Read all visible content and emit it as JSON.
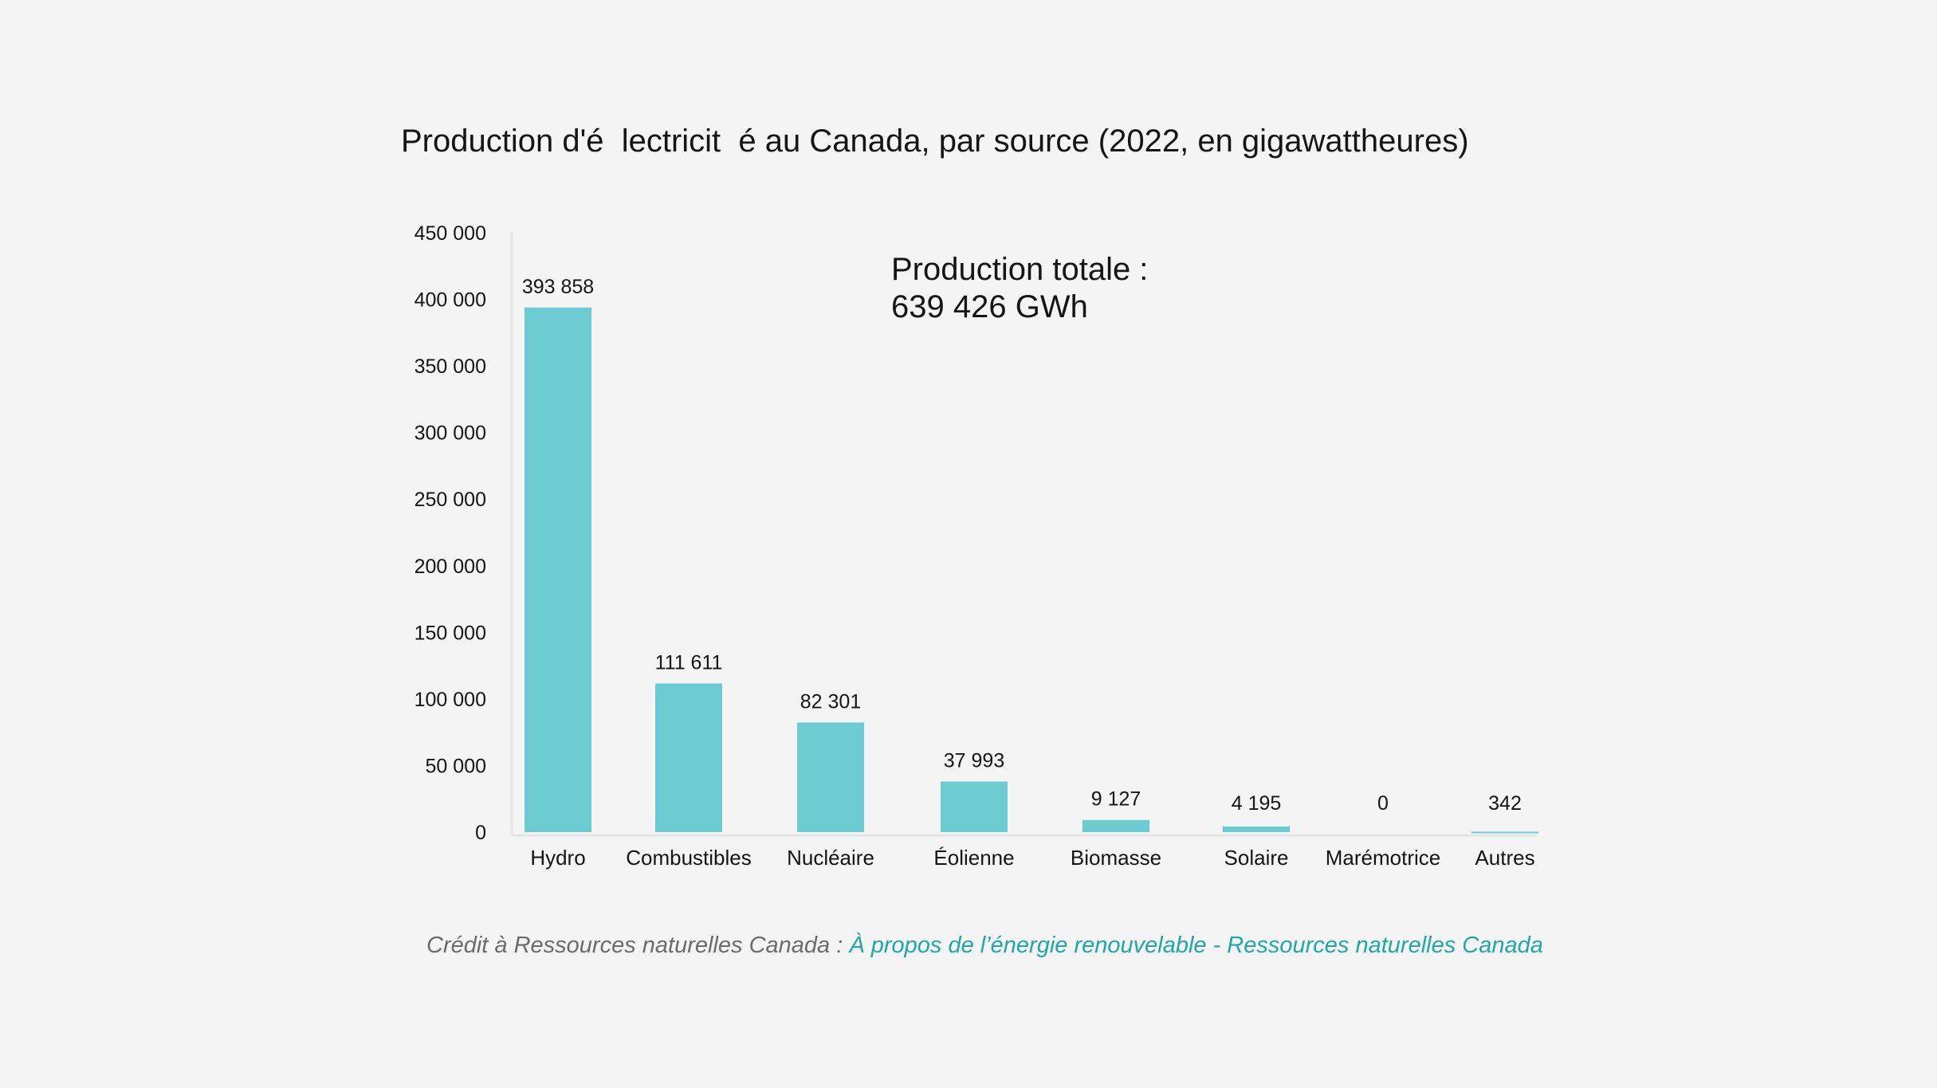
{
  "chart_data": {
    "type": "bar",
    "title": "Production d'é  lectricit  é au Canada, par source (2022, en gigawattheures)",
    "xlabel": "",
    "ylabel": "",
    "ylim": [
      0,
      450000
    ],
    "yticks": [
      "0",
      "50 000",
      "100 000",
      "150 000",
      "200 000",
      "250 000",
      "300 000",
      "350 000",
      "400 000",
      "450 000"
    ],
    "ytick_values": [
      0,
      50000,
      100000,
      150000,
      200000,
      250000,
      300000,
      350000,
      400000,
      450000
    ],
    "categories": [
      "Hydro",
      "Combustibles",
      "Nucléaire",
      "Éolienne",
      "Biomasse",
      "Solaire",
      "Marémotrice",
      "Autres"
    ],
    "values": [
      393858,
      111611,
      82301,
      37993,
      9127,
      4195,
      0,
      342
    ],
    "value_labels": [
      "393 858",
      "111 611",
      "82 301",
      "37 993",
      "9 127",
      "4 195",
      "0",
      "342"
    ],
    "bar_color": "#6ccbd0",
    "grid": false,
    "legend": "none",
    "annotation": {
      "line1": "Production totale :",
      "line2": "639 426 GWh"
    }
  },
  "credit": {
    "prefix": "Crédit à Ressources naturelles Canada : ",
    "link_text": "À propos de l’énergie renouvelable - Ressources naturelles Canada",
    "link_color": "#1fa8a8"
  }
}
